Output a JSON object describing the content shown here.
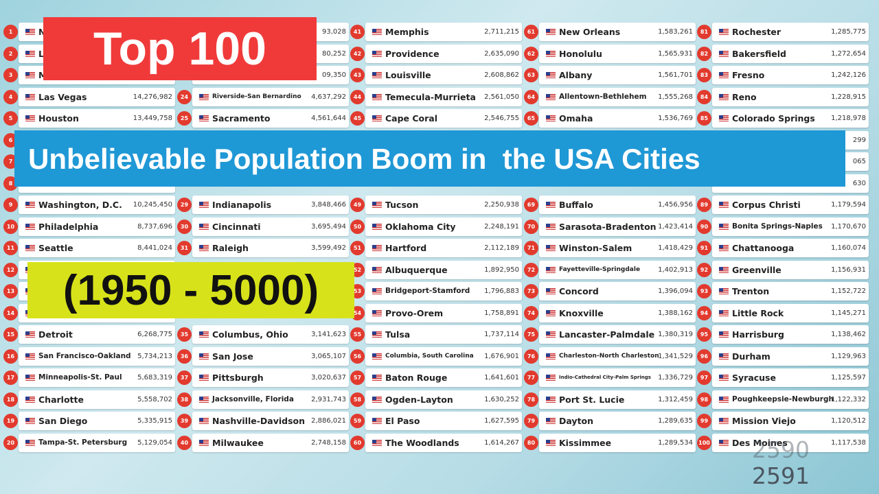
{
  "title": "Top 100",
  "banner": "Unbelievable Population Boom in  the USA Cities",
  "years": "(1950 - 5000)",
  "counter": {
    "previous": "2590",
    "current": "2591"
  },
  "columns": [
    [
      {
        "rank": 1,
        "city": "N"
      },
      {
        "rank": 2,
        "city": "L"
      },
      {
        "rank": 3,
        "city": "M"
      },
      {
        "rank": 4,
        "city": "Las Vegas",
        "population": "14,276,982"
      },
      {
        "rank": 5,
        "city": "Houston",
        "population": "13,449,758"
      },
      {
        "rank": 6
      },
      {
        "rank": 7
      },
      {
        "rank": 8
      },
      {
        "rank": 9,
        "city": "Washington, D.C.",
        "population": "10,245,450"
      },
      {
        "rank": 10,
        "city": "Philadelphia",
        "population": "8,737,696"
      },
      {
        "rank": 11,
        "city": "Seattle",
        "population": "8,441,024"
      },
      {
        "rank": 12
      },
      {
        "rank": 13
      },
      {
        "rank": 14
      },
      {
        "rank": 15,
        "city": "Detroit",
        "population": "6,268,775"
      },
      {
        "rank": 16,
        "city": "San Francisco-Oakland",
        "population": "5,734,213"
      },
      {
        "rank": 17,
        "city": "Minneapolis-St. Paul",
        "population": "5,683,319"
      },
      {
        "rank": 18,
        "city": "Charlotte",
        "population": "5,558,702"
      },
      {
        "rank": 19,
        "city": "San Diego",
        "population": "5,335,915"
      },
      {
        "rank": 20,
        "city": "Tampa-St. Petersburg",
        "population": "5,129,054"
      }
    ],
    [
      {
        "population": "93,028"
      },
      {
        "population": "80,252"
      },
      {
        "population": "09,350"
      },
      {
        "rank": 24,
        "city": "Riverside-San Bernardino",
        "population": "4,637,292"
      },
      {
        "rank": 25,
        "city": "Sacramento",
        "population": "4,561,644"
      },
      null,
      null,
      null,
      {
        "rank": 29,
        "city": "Indianapolis",
        "population": "3,848,466"
      },
      {
        "rank": 30,
        "city": "Cincinnati",
        "population": "3,695,494"
      },
      {
        "rank": 31,
        "city": "Raleigh",
        "population": "3,599,492"
      },
      null,
      null,
      null,
      {
        "rank": 35,
        "city": "Columbus, Ohio",
        "population": "3,141,623"
      },
      {
        "rank": 36,
        "city": "San Jose",
        "population": "3,065,107"
      },
      {
        "rank": 37,
        "city": "Pittsburgh",
        "population": "3,020,637"
      },
      {
        "rank": 38,
        "city": "Jacksonville, Florida",
        "population": "2,931,743"
      },
      {
        "rank": 39,
        "city": "Nashville-Davidson",
        "population": "2,886,021"
      },
      {
        "rank": 40,
        "city": "Milwaukee",
        "population": "2,748,158"
      }
    ],
    [
      {
        "rank": 41,
        "city": "Memphis",
        "population": "2,711,215"
      },
      {
        "rank": 42,
        "city": "Providence",
        "population": "2,635,090"
      },
      {
        "rank": 43,
        "city": "Louisville",
        "population": "2,608,862"
      },
      {
        "rank": 44,
        "city": "Temecula-Murrieta",
        "population": "2,561,050"
      },
      {
        "rank": 45,
        "city": "Cape Coral",
        "population": "2,546,755"
      },
      null,
      null,
      null,
      {
        "rank": 49,
        "city": "Tucson",
        "population": "2,250,938"
      },
      {
        "rank": 50,
        "city": "Oklahoma City",
        "population": "2,248,191"
      },
      {
        "rank": 51,
        "city": "Hartford",
        "population": "2,112,189"
      },
      {
        "rank": 52,
        "city": "Albuquerque",
        "population": "1,892,950"
      },
      {
        "rank": 53,
        "city": "Bridgeport-Stamford",
        "population": "1,796,883"
      },
      {
        "rank": 54,
        "city": "Provo-Orem",
        "population": "1,758,891"
      },
      {
        "rank": 55,
        "city": "Tulsa",
        "population": "1,737,114"
      },
      {
        "rank": 56,
        "city": "Columbia, South Carolina",
        "population": "1,676,901"
      },
      {
        "rank": 57,
        "city": "Baton Rouge",
        "population": "1,641,601"
      },
      {
        "rank": 58,
        "city": "Ogden-Layton",
        "population": "1,630,252"
      },
      {
        "rank": 59,
        "city": "El Paso",
        "population": "1,627,595"
      },
      {
        "rank": 60,
        "city": "The Woodlands",
        "population": "1,614,267"
      }
    ],
    [
      {
        "rank": 61,
        "city": "New Orleans",
        "population": "1,583,261"
      },
      {
        "rank": 62,
        "city": "Honolulu",
        "population": "1,565,931"
      },
      {
        "rank": 63,
        "city": "Albany",
        "population": "1,561,701"
      },
      {
        "rank": 64,
        "city": "Allentown-Bethlehem",
        "population": "1,555,268"
      },
      {
        "rank": 65,
        "city": "Omaha",
        "population": "1,536,769"
      },
      null,
      null,
      null,
      {
        "rank": 69,
        "city": "Buffalo",
        "population": "1,456,956"
      },
      {
        "rank": 70,
        "city": "Sarasota-Bradenton",
        "population": "1,423,414"
      },
      {
        "rank": 71,
        "city": "Winston-Salem",
        "population": "1,418,429"
      },
      {
        "rank": 72,
        "city": "Fayetteville-Springdale",
        "population": "1,402,913"
      },
      {
        "rank": 73,
        "city": "Concord",
        "population": "1,396,094"
      },
      {
        "rank": 74,
        "city": "Knoxville",
        "population": "1,388,162"
      },
      {
        "rank": 75,
        "city": "Lancaster-Palmdale",
        "population": "1,380,319"
      },
      {
        "rank": 76,
        "city": "Charleston-North Charleston",
        "population": "1,341,529"
      },
      {
        "rank": 77,
        "city": "Indio-Cathedral City-Palm Springs",
        "population": "1,336,729"
      },
      {
        "rank": 78,
        "city": "Port St. Lucie",
        "population": "1,312,459"
      },
      {
        "rank": 79,
        "city": "Dayton",
        "population": "1,289,635"
      },
      {
        "rank": 80,
        "city": "Kissimmee",
        "population": "1,289,534"
      }
    ],
    [
      {
        "rank": 81,
        "city": "Rochester",
        "population": "1,285,775"
      },
      {
        "rank": 82,
        "city": "Bakersfield",
        "population": "1,272,654"
      },
      {
        "rank": 83,
        "city": "Fresno",
        "population": "1,242,126"
      },
      {
        "rank": 84,
        "city": "Reno",
        "population": "1,228,915"
      },
      {
        "rank": 85,
        "city": "Colorado Springs",
        "population": "1,218,978"
      },
      {
        "population": "299"
      },
      {
        "population": "065"
      },
      {
        "population": "630"
      },
      {
        "rank": 89,
        "city": "Corpus Christi",
        "population": "1,179,594"
      },
      {
        "rank": 90,
        "city": "Bonita Springs-Naples",
        "population": "1,170,670"
      },
      {
        "rank": 91,
        "city": "Chattanooga",
        "population": "1,160,074"
      },
      {
        "rank": 92,
        "city": "Greenville",
        "population": "1,156,931"
      },
      {
        "rank": 93,
        "city": "Trenton",
        "population": "1,152,722"
      },
      {
        "rank": 94,
        "city": "Little Rock",
        "population": "1,145,271"
      },
      {
        "rank": 95,
        "city": "Harrisburg",
        "population": "1,138,462"
      },
      {
        "rank": 96,
        "city": "Durham",
        "population": "1,129,963"
      },
      {
        "rank": 97,
        "city": "Syracuse",
        "population": "1,125,597"
      },
      {
        "rank": 98,
        "city": "Poughkeepsie-Newburgh",
        "population": "1,122,332"
      },
      {
        "rank": 99,
        "city": "Mission Viejo",
        "population": "1,120,512"
      },
      {
        "rank": 100,
        "city": "Des Moines",
        "population": "1,117,538"
      }
    ]
  ]
}
